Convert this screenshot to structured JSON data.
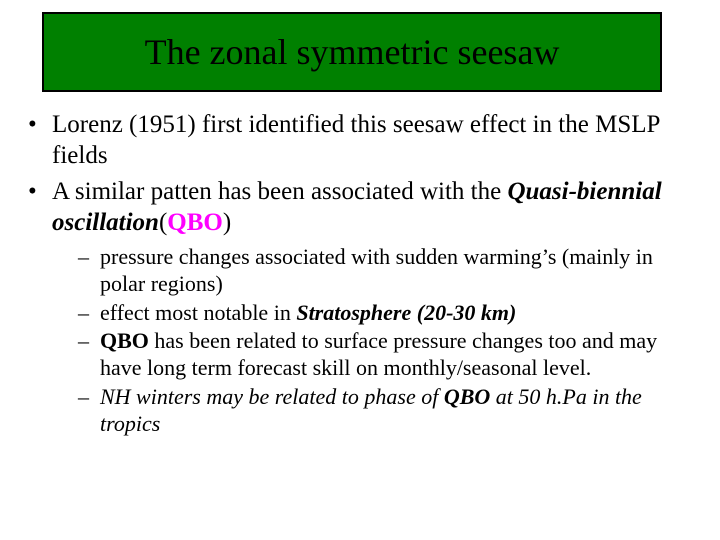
{
  "title": "The zonal symmetric seesaw",
  "colors": {
    "title_bg": "#008000",
    "title_border": "#000000",
    "text": "#000000",
    "qbo": "#ff00ff",
    "background": "#ffffff"
  },
  "typography": {
    "title_fontsize_pt": 36,
    "body_l1_fontsize_pt": 25,
    "body_l2_fontsize_pt": 22,
    "font_family": "Century Schoolbook / Times-like serif"
  },
  "bullets": [
    {
      "text": "Lorenz (1951) first identified this seesaw effect in the MSLP fields"
    },
    {
      "lead": "A similar patten has been associated with the ",
      "emph": "Quasi-biennial oscillation",
      "paren_open": "(",
      "qbo": "QBO",
      "paren_close": ")"
    }
  ],
  "subs": [
    {
      "text": "pressure changes associated with sudden warming’s (mainly in polar regions)"
    },
    {
      "lead": "effect most notable in ",
      "emph": "Stratosphere (20-30 km)"
    },
    {
      "qbo": "QBO",
      "text": " has been related to surface pressure changes too and may have long term forecast skill on monthly/seasonal level."
    },
    {
      "lead": "NH winters may be related to phase of ",
      "qbo": "QBO",
      "tail": " at 50 h.Pa in the tropics"
    }
  ]
}
